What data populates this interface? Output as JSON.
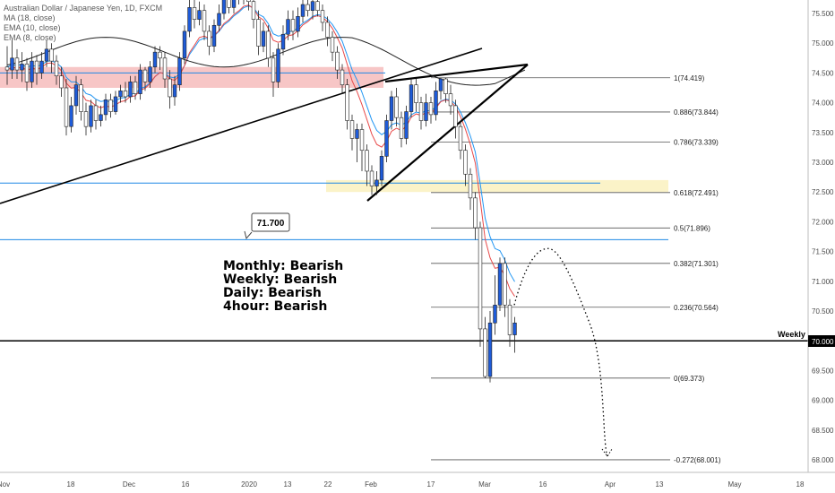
{
  "legend": {
    "symbol": "Australian Dollar / Japanese Yen, 1D, FXCM",
    "ma": "MA (18, close)",
    "ema1": "EMA (10, close)",
    "ema2": "EMA (8, close)"
  },
  "bias": {
    "monthly": "Monthly: Bearish",
    "weekly": "Weekly: Bearish",
    "daily": "Daily: Bearish",
    "h4": "4hour: Bearish"
  },
  "labels": {
    "callout": "71.700",
    "weekly": "Weekly",
    "weekly_price": "70.000"
  },
  "colors": {
    "bull": "#1e5bd8",
    "bear": "#ffffff",
    "ma_red": "#e84a4a",
    "ema_blue": "#2196f3",
    "ma_black": "#222222",
    "zone_red": "#f7c6c6",
    "zone_yellow": "#fbf3c8",
    "level_blue": "#1e88e5"
  },
  "chart_data": {
    "type": "candlestick",
    "title": "",
    "y_ticks": [
      68.0,
      68.5,
      69.0,
      69.5,
      70.0,
      70.5,
      71.0,
      71.5,
      72.0,
      72.5,
      73.0,
      73.5,
      74.0,
      74.5,
      75.0,
      75.5
    ],
    "ylim": [
      67.85,
      75.7
    ],
    "x_ticks": [
      "Nov",
      "18",
      "Dec",
      "16",
      "2020",
      "13",
      "22",
      "Feb",
      "17",
      "Mar",
      "16",
      "Apr",
      "13",
      "May",
      "18"
    ],
    "candles": [
      [
        74.6,
        74.55,
        74.95,
        74.3
      ],
      [
        74.55,
        74.75,
        75.05,
        74.4
      ],
      [
        74.75,
        74.55,
        74.9,
        74.4
      ],
      [
        74.55,
        74.65,
        74.85,
        74.35
      ],
      [
        74.65,
        74.35,
        74.75,
        74.2
      ],
      [
        74.35,
        74.7,
        74.85,
        74.25
      ],
      [
        74.7,
        74.5,
        74.8,
        74.3
      ],
      [
        74.5,
        74.7,
        74.85,
        74.4
      ],
      [
        74.7,
        74.9,
        75.05,
        74.6
      ],
      [
        74.9,
        74.7,
        75.0,
        74.5
      ],
      [
        74.7,
        74.45,
        74.8,
        74.3
      ],
      [
        74.45,
        74.25,
        74.6,
        74.1
      ],
      [
        74.25,
        73.6,
        74.4,
        73.45
      ],
      [
        73.6,
        73.95,
        74.1,
        73.5
      ],
      [
        73.95,
        74.3,
        74.45,
        73.8
      ],
      [
        74.3,
        73.85,
        74.4,
        73.7
      ],
      [
        73.85,
        73.6,
        74.0,
        73.45
      ],
      [
        73.6,
        73.95,
        74.05,
        73.5
      ],
      [
        73.95,
        73.7,
        74.05,
        73.55
      ],
      [
        73.7,
        73.8,
        73.95,
        73.6
      ],
      [
        73.8,
        74.05,
        74.15,
        73.7
      ],
      [
        74.05,
        73.85,
        74.15,
        73.75
      ],
      [
        73.85,
        74.1,
        74.2,
        73.8
      ],
      [
        74.1,
        74.2,
        74.3,
        74.0
      ],
      [
        74.2,
        74.1,
        74.35,
        74.0
      ],
      [
        74.1,
        74.35,
        74.45,
        74.0
      ],
      [
        74.35,
        74.15,
        74.45,
        74.05
      ],
      [
        74.15,
        74.55,
        74.65,
        74.05
      ],
      [
        74.55,
        74.35,
        74.6,
        74.2
      ],
      [
        74.35,
        74.6,
        74.7,
        74.25
      ],
      [
        74.6,
        74.85,
        74.95,
        74.5
      ],
      [
        74.85,
        74.75,
        74.95,
        74.55
      ],
      [
        74.75,
        74.4,
        74.85,
        74.25
      ],
      [
        74.4,
        74.1,
        74.55,
        73.9
      ],
      [
        74.1,
        74.3,
        74.45,
        73.95
      ],
      [
        74.3,
        74.75,
        74.85,
        74.2
      ],
      [
        74.75,
        75.2,
        75.3,
        74.65
      ],
      [
        75.2,
        75.6,
        75.75,
        75.1
      ],
      [
        75.6,
        75.4,
        75.75,
        75.25
      ],
      [
        75.4,
        75.55,
        75.7,
        75.3
      ],
      [
        75.55,
        75.2,
        75.65,
        75.05
      ],
      [
        75.2,
        74.95,
        75.3,
        74.8
      ],
      [
        74.95,
        75.3,
        75.4,
        74.85
      ],
      [
        75.3,
        75.5,
        75.65,
        75.2
      ],
      [
        75.5,
        75.75,
        75.85,
        75.4
      ],
      [
        75.75,
        75.6,
        75.85,
        75.5
      ],
      [
        75.6,
        75.8,
        75.9,
        75.5
      ],
      [
        75.8,
        75.75,
        75.9,
        75.65
      ],
      [
        75.75,
        75.9,
        76.0,
        75.65
      ],
      [
        75.9,
        75.7,
        76.0,
        75.55
      ],
      [
        75.7,
        75.4,
        75.85,
        75.25
      ],
      [
        75.4,
        74.95,
        75.55,
        74.8
      ],
      [
        74.95,
        75.2,
        75.35,
        74.85
      ],
      [
        75.2,
        74.75,
        75.3,
        74.6
      ],
      [
        74.75,
        74.35,
        74.85,
        74.1
      ],
      [
        74.35,
        74.9,
        75.0,
        74.25
      ],
      [
        74.9,
        75.15,
        75.3,
        74.8
      ],
      [
        75.15,
        75.4,
        75.55,
        75.05
      ],
      [
        75.4,
        75.2,
        75.55,
        75.05
      ],
      [
        75.2,
        75.45,
        75.6,
        75.1
      ],
      [
        75.45,
        75.65,
        75.75,
        75.35
      ],
      [
        75.65,
        75.55,
        75.75,
        75.45
      ],
      [
        75.55,
        75.7,
        75.8,
        75.4
      ],
      [
        75.7,
        75.55,
        75.8,
        75.45
      ],
      [
        75.55,
        75.35,
        75.65,
        75.2
      ],
      [
        75.35,
        75.1,
        75.45,
        74.95
      ],
      [
        75.1,
        74.85,
        75.2,
        74.7
      ],
      [
        74.85,
        74.55,
        74.95,
        74.4
      ],
      [
        74.55,
        74.3,
        74.65,
        74.15
      ],
      [
        74.3,
        73.7,
        74.4,
        73.55
      ],
      [
        73.7,
        73.4,
        73.8,
        73.2
      ],
      [
        73.4,
        73.55,
        73.65,
        73.0
      ],
      [
        73.55,
        73.2,
        73.65,
        72.85
      ],
      [
        73.2,
        72.85,
        73.3,
        72.6
      ],
      [
        72.85,
        72.6,
        72.95,
        72.45
      ],
      [
        72.6,
        72.7,
        72.85,
        72.45
      ],
      [
        72.7,
        73.1,
        73.2,
        72.6
      ],
      [
        73.1,
        73.7,
        73.8,
        73.0
      ],
      [
        73.7,
        74.1,
        74.2,
        73.55
      ],
      [
        74.1,
        73.75,
        74.25,
        73.6
      ],
      [
        73.75,
        73.4,
        73.85,
        73.25
      ],
      [
        73.4,
        73.85,
        73.95,
        73.3
      ],
      [
        73.85,
        74.3,
        74.4,
        73.75
      ],
      [
        74.3,
        74.0,
        74.4,
        73.85
      ],
      [
        74.0,
        73.7,
        74.1,
        73.55
      ],
      [
        73.7,
        74.0,
        74.15,
        73.6
      ],
      [
        74.0,
        73.8,
        74.1,
        73.65
      ],
      [
        73.8,
        74.2,
        74.35,
        73.7
      ],
      [
        74.2,
        74.4,
        74.42,
        74.05
      ],
      [
        74.4,
        74.15,
        74.42,
        74.0
      ],
      [
        74.15,
        73.95,
        74.3,
        73.8
      ],
      [
        73.95,
        73.6,
        74.05,
        73.4
      ],
      [
        73.6,
        73.2,
        73.7,
        73.05
      ],
      [
        73.2,
        72.8,
        73.3,
        72.6
      ],
      [
        72.8,
        72.4,
        72.9,
        72.2
      ],
      [
        72.4,
        71.9,
        72.5,
        71.7
      ],
      [
        71.9,
        70.2,
        72.0,
        69.9
      ],
      [
        70.2,
        69.4,
        70.4,
        69.37
      ],
      [
        69.4,
        70.3,
        70.5,
        69.3
      ],
      [
        70.3,
        70.6,
        71.1,
        70.1
      ],
      [
        70.6,
        71.3,
        71.4,
        70.5
      ],
      [
        71.3,
        70.6,
        71.4,
        70.4
      ],
      [
        70.6,
        70.1,
        70.7,
        69.9
      ],
      [
        70.1,
        70.3,
        70.4,
        69.8
      ]
    ],
    "fib_levels": [
      {
        "ratio": "1",
        "price": 74.419,
        "label": "1(74.419)"
      },
      {
        "ratio": "0.886",
        "price": 73.844,
        "label": "0.886(73.844)"
      },
      {
        "ratio": "0.786",
        "price": 73.339,
        "label": "0.786(73.339)"
      },
      {
        "ratio": "0.618",
        "price": 72.491,
        "label": "0.618(72.491)"
      },
      {
        "ratio": "0.5",
        "price": 71.896,
        "label": "0.5(71.896)"
      },
      {
        "ratio": "0.382",
        "price": 71.301,
        "label": "0.382(71.301)"
      },
      {
        "ratio": "0.236",
        "price": 70.564,
        "label": "0.236(70.564)"
      },
      {
        "ratio": "0",
        "price": 69.373,
        "label": "0(69.373)"
      },
      {
        "ratio": "-0.272",
        "price": 68.001,
        "label": "-0.272(68.001)"
      }
    ],
    "horizontal_levels": [
      74.5,
      72.65,
      71.7,
      70.0
    ],
    "zones": [
      {
        "color": "red",
        "from": 74.25,
        "to": 74.6
      },
      {
        "color": "yellow",
        "from": 72.5,
        "to": 72.7
      }
    ],
    "projection": [
      [
        70.6,
        71.5
      ],
      [
        71.55,
        71.0
      ],
      [
        70.3,
        68.0
      ]
    ]
  }
}
